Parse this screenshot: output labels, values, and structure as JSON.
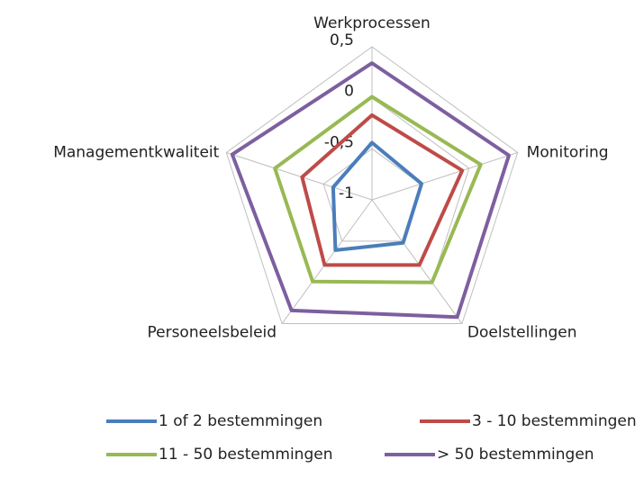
{
  "chart_data": {
    "type": "radar",
    "categories": [
      "Werkprocessen",
      "Monitoring",
      "Doelstellingen",
      "Personeelsbeleid",
      "Managementkwaliteit"
    ],
    "ylim": [
      -1,
      0.5
    ],
    "yticks": [
      -1,
      {
        "value": -0.5,
        "label": "-0,5"
      },
      0,
      {
        "value": 0.5,
        "label": "0,5"
      }
    ],
    "grid": true,
    "series": [
      {
        "name": "1 of 2 bestemmingen",
        "color": "#4a7ebb",
        "values": [
          -0.44,
          -0.49,
          -0.48,
          -0.39,
          -0.6
        ]
      },
      {
        "name": "3 - 10 bestemmingen",
        "color": "#be4b48",
        "values": [
          -0.17,
          -0.07,
          -0.21,
          -0.21,
          -0.28
        ]
      },
      {
        "name": "11 - 50 bestemmingen",
        "color": "#98b954",
        "values": [
          0.01,
          0.12,
          0.0,
          -0.01,
          0.0
        ]
      },
      {
        "name": "> 50 bestemmingen",
        "color": "#7d5fa0",
        "values": [
          0.34,
          0.41,
          0.42,
          0.34,
          0.44
        ]
      }
    ]
  }
}
